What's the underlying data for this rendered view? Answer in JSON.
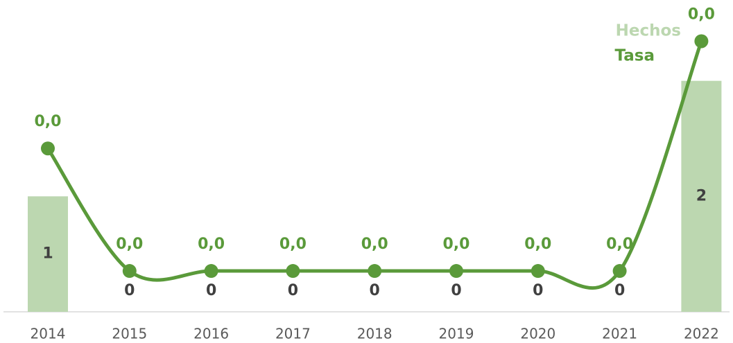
{
  "chart_data": {
    "type": "bar-line",
    "categories": [
      "2014",
      "2015",
      "2016",
      "2017",
      "2018",
      "2019",
      "2020",
      "2021",
      "2022"
    ],
    "series": [
      {
        "name": "Hechos",
        "color": "#bcd7b0",
        "type": "bar",
        "values": [
          1,
          0,
          0,
          0,
          0,
          0,
          0,
          0,
          2
        ]
      },
      {
        "name": "Tasa",
        "color": "#5a9a3a",
        "type": "line",
        "axis": "y2",
        "values": [
          0.024,
          0,
          0,
          0,
          0,
          0,
          0,
          0,
          0.045
        ],
        "value_labels": [
          "0,0",
          "0,0",
          "0,0",
          "0,0",
          "0,0",
          "0,0",
          "0,0",
          "0,0",
          "0,0"
        ]
      }
    ],
    "ylim": [
      0,
      2.52
    ],
    "y2lim": [
      -0.008,
      0.049
    ],
    "legend": "top-right"
  }
}
